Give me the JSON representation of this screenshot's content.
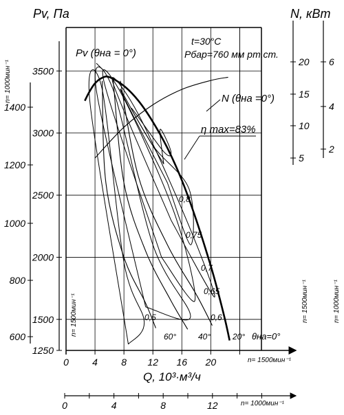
{
  "chart_data": {
    "type": "line",
    "title": "",
    "conditions": {
      "temperature": "t=30°C",
      "pressure": "Рбар=760 мм рт.ст."
    },
    "x_axis": {
      "label": "Q, 10³·м³/ч",
      "speed_note": "n= 1500мин⁻¹",
      "range": [
        0,
        27
      ],
      "ticks": [
        "0",
        "4",
        "8",
        "12",
        "16",
        "20",
        "24"
      ]
    },
    "x_axis_1000": {
      "speed_note": "n= 1000мин⁻¹",
      "range": [
        0,
        18
      ],
      "ticks": [
        "0",
        "4",
        "8",
        "12"
      ]
    },
    "y_axis_pv_1500": {
      "label": "Pv, Па",
      "range": [
        1250,
        3850
      ],
      "ticks": [
        "1250",
        "1500",
        "2000",
        "2500",
        "3000",
        "3500"
      ]
    },
    "y_axis_pv_1000": {
      "speed_note": "n= 1000мин⁻¹",
      "ticks": [
        "600",
        "800",
        "1000",
        "1200",
        "1400"
      ]
    },
    "y_axis_n_1500": {
      "label": "N, кВт",
      "speed_note": "n= 1500мин⁻¹",
      "ticks": [
        "5",
        "10",
        "15",
        "20"
      ]
    },
    "y_axis_n_1000": {
      "speed_note": "n= 1000мин⁻¹",
      "ticks": [
        "2",
        "4",
        "6"
      ]
    },
    "main_curve": {
      "name": "Pv (θна = 0°)",
      "points": [
        [
          2.6,
          3260
        ],
        [
          3.2,
          3330
        ],
        [
          4,
          3400
        ],
        [
          5,
          3445
        ],
        [
          6,
          3450
        ],
        [
          8,
          3380
        ],
        [
          10,
          3260
        ],
        [
          12,
          3090
        ],
        [
          14,
          2880
        ],
        [
          16,
          2620
        ],
        [
          18,
          2300
        ],
        [
          20,
          1930
        ],
        [
          21,
          1720
        ],
        [
          22,
          1490
        ],
        [
          22.6,
          1330
        ]
      ]
    },
    "power_curve": {
      "name": "N (θна =0°)",
      "power_kw": [
        [
          4,
          5
        ],
        [
          8,
          9.8
        ],
        [
          12,
          13.3
        ],
        [
          16,
          15.7
        ],
        [
          20,
          17.1
        ],
        [
          22.4,
          17.6
        ]
      ]
    },
    "blade_angle_curves": [
      {
        "label": "60°",
        "points": [
          [
            5,
            3420
          ],
          [
            5.5,
            2600
          ],
          [
            8,
            2000
          ],
          [
            11,
            1630
          ],
          [
            12.4,
            1430
          ]
        ]
      },
      {
        "label": "40°",
        "points": [
          [
            6.5,
            3430
          ],
          [
            8,
            2600
          ],
          [
            11,
            2050
          ],
          [
            14.5,
            1650
          ],
          [
            16.8,
            1420
          ]
        ]
      },
      {
        "label": "20°",
        "points": [
          [
            7.5,
            3420
          ],
          [
            10,
            2650
          ],
          [
            14,
            2100
          ],
          [
            18,
            1700
          ],
          [
            20.2,
            1450
          ]
        ]
      }
    ],
    "efficiency_curves": [
      {
        "label": "0,5",
        "points": [
          [
            8.6,
            1300
          ],
          [
            3.3,
            3250
          ],
          [
            5,
            3350
          ],
          [
            8,
            1960
          ],
          [
            10.8,
            1480
          ]
        ]
      },
      {
        "label": "0,6",
        "points": [
          [
            11,
            1600
          ],
          [
            4.2,
            3340
          ],
          [
            6.5,
            3350
          ],
          [
            12,
            2100
          ],
          [
            17.2,
            1520
          ]
        ]
      },
      {
        "label": "0,65",
        "points": [
          [
            13.2,
            2000
          ],
          [
            5.3,
            3400
          ],
          [
            7.8,
            3300
          ],
          [
            15,
            2350
          ],
          [
            17.8,
            1650
          ]
        ]
      },
      {
        "label": "0,7",
        "points": [
          [
            14.5,
            2300
          ],
          [
            6.5,
            3400
          ],
          [
            10,
            3150
          ],
          [
            17,
            2250
          ],
          [
            20.5,
            1680
          ]
        ]
      },
      {
        "label": "0,75",
        "points": [
          [
            14,
            2600
          ],
          [
            7.5,
            3350
          ],
          [
            12,
            2900
          ],
          [
            17,
            2550
          ],
          [
            17.2,
            2100
          ]
        ]
      },
      {
        "label": "0,8",
        "points": [
          [
            13.5,
            2750
          ],
          [
            9,
            3200
          ],
          [
            13.5,
            2850
          ],
          [
            14.5,
            2850
          ],
          [
            13,
            3030
          ]
        ]
      }
    ],
    "annotations": [
      "η max=83%",
      "0,5",
      "0,6",
      "0,65",
      "0,7",
      "0,75",
      "0,8",
      "60°",
      "40°",
      "20°",
      "θна=0°"
    ]
  }
}
